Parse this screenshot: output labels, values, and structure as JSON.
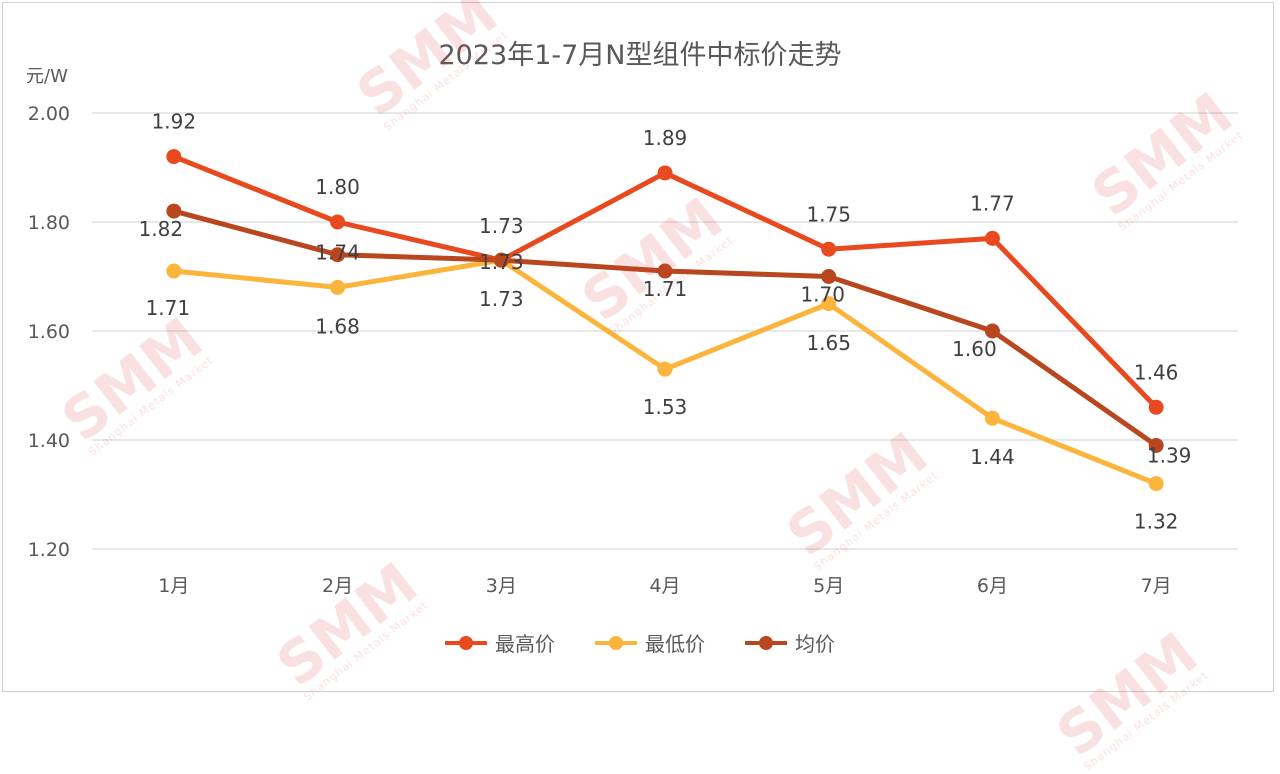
{
  "chart_data": {
    "type": "line",
    "title": "2023年1-7月N型组件中标价走势",
    "unit_label": "元/W",
    "categories": [
      "1月",
      "2月",
      "3月",
      "4月",
      "5月",
      "6月",
      "7月"
    ],
    "y_ticks": [
      "1.20",
      "1.40",
      "1.60",
      "1.80",
      "2.00"
    ],
    "ylim": [
      1.2,
      2.0
    ],
    "grid": true,
    "legend_position": "bottom",
    "series": [
      {
        "name": "最高价",
        "color": "#e8491e",
        "values": [
          1.92,
          1.8,
          1.73,
          1.89,
          1.75,
          1.77,
          1.46
        ],
        "labels": [
          "1.92",
          "1.80",
          "1.73",
          "1.89",
          "1.75",
          "1.77",
          "1.46"
        ]
      },
      {
        "name": "最低价",
        "color": "#fbb53c",
        "values": [
          1.71,
          1.68,
          1.73,
          1.53,
          1.65,
          1.44,
          1.32
        ],
        "labels": [
          "1.71",
          "1.68",
          "1.73",
          "1.53",
          "1.65",
          "1.44",
          "1.32"
        ]
      },
      {
        "name": "均价",
        "color": "#b8471f",
        "values": [
          1.82,
          1.74,
          1.73,
          1.71,
          1.7,
          1.6,
          1.39
        ],
        "labels": [
          "1.82",
          "1.74",
          "1.73",
          "1.71",
          "1.70",
          "1.60",
          "1.39"
        ]
      }
    ]
  },
  "watermark": {
    "logo": "SMM",
    "sub": "Shanghai Metals Market"
  }
}
